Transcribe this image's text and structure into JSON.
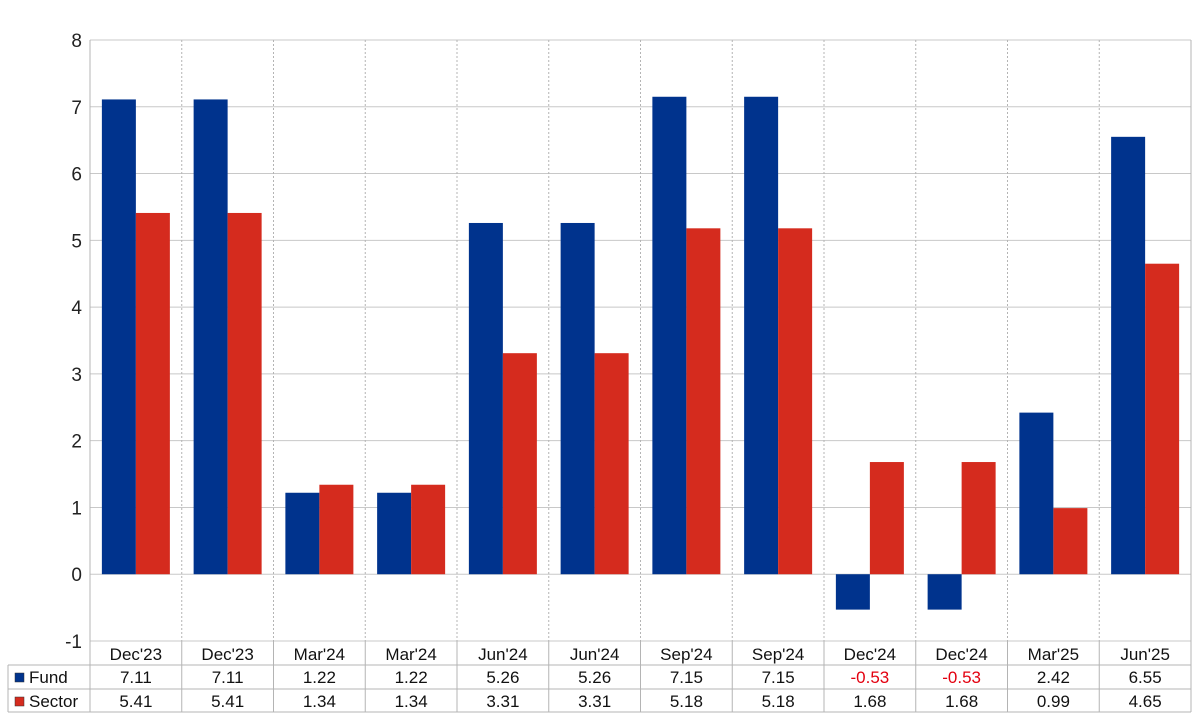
{
  "chart_data": {
    "type": "bar",
    "categories": [
      "Dec'23",
      "Dec'23",
      "Mar'24",
      "Mar'24",
      "Jun'24",
      "Jun'24",
      "Sep'24",
      "Sep'24",
      "Dec'24",
      "Dec'24",
      "Mar'25",
      "Jun'25"
    ],
    "series": [
      {
        "name": "Fund",
        "color": "#00338d",
        "values": [
          7.11,
          7.11,
          1.22,
          1.22,
          5.26,
          5.26,
          7.15,
          7.15,
          -0.53,
          -0.53,
          2.42,
          6.55
        ]
      },
      {
        "name": "Sector",
        "color": "#d52b1e",
        "values": [
          5.41,
          5.41,
          1.34,
          1.34,
          3.31,
          3.31,
          5.18,
          5.18,
          1.68,
          1.68,
          0.99,
          4.65
        ]
      }
    ],
    "title": "",
    "xlabel": "",
    "ylabel": "",
    "ylim": [
      -1,
      8
    ],
    "yticks": [
      -1,
      0,
      1,
      2,
      3,
      4,
      5,
      6,
      7,
      8
    ],
    "grid": true,
    "negative_value_color": "#e3000f",
    "data_table": true
  }
}
